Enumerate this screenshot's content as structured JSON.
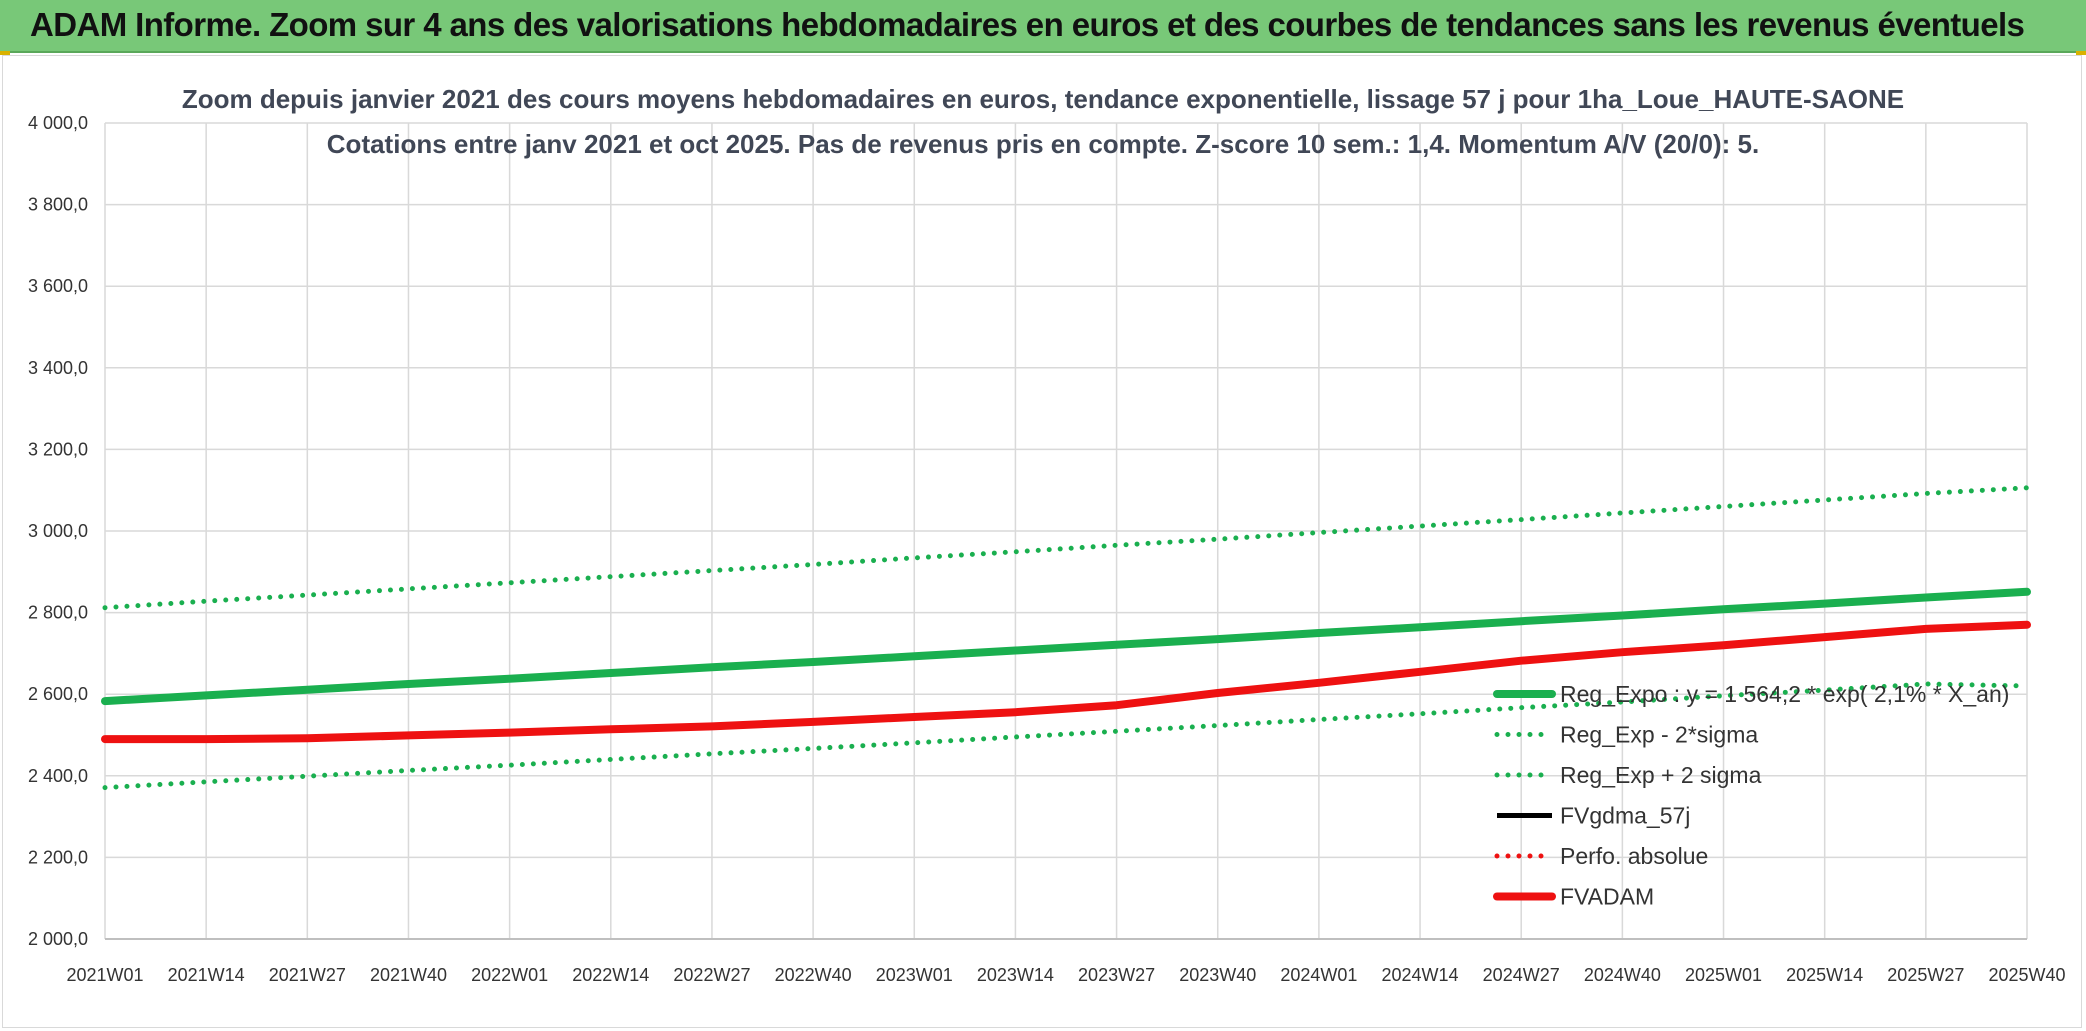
{
  "banner": {
    "title": "ADAM Informe. Zoom sur 4 ans des valorisations hebdomadaires en euros et des courbes de tendances sans les revenus éventuels"
  },
  "colors": {
    "banner_bg": "#78c878",
    "green": "#1aaf4f",
    "red": "#ee1111",
    "black": "#000000",
    "grid": "#d9d9d9",
    "title_text": "#404756"
  },
  "chart_data": {
    "type": "line",
    "title_line1": "Zoom depuis janvier 2021 des cours moyens hebdomadaires en euros, tendance exponentielle, lissage 57 j pour 1ha_Loue_HAUTE-SAONE",
    "title_line2": "Cotations entre janv 2021 et oct 2025. Pas de revenus pris en compte. Z-score 10 sem.: 1,4. Momentum A/V (20/0): 5.",
    "x_categories": [
      "2021W01",
      "2021W14",
      "2021W27",
      "2021W40",
      "2022W01",
      "2022W14",
      "2022W27",
      "2022W40",
      "2023W01",
      "2023W14",
      "2023W27",
      "2023W40",
      "2024W01",
      "2024W14",
      "2024W27",
      "2024W40",
      "2025W01",
      "2025W14",
      "2025W27",
      "2025W40"
    ],
    "y_ticks": [
      "2 000,0",
      "2 200,0",
      "2 400,0",
      "2 600,0",
      "2 800,0",
      "3 000,0",
      "3 200,0",
      "3 400,0",
      "3 600,0",
      "3 800,0",
      "4 000,0"
    ],
    "ylim": [
      2000,
      4000
    ],
    "legend_position": "right",
    "series": [
      {
        "name": "Reg_Expo : y = 1 564,2 * exp( 2,1% * X_an)",
        "style": "solid-thick",
        "color": "#1aaf4f",
        "values": [
          2583,
          2597,
          2611,
          2625,
          2638,
          2652,
          2666,
          2679,
          2693,
          2707,
          2721,
          2735,
          2750,
          2764,
          2779,
          2793,
          2808,
          2822,
          2837,
          2851
        ]
      },
      {
        "name": "Reg_Exp - 2*sigma",
        "style": "dotted",
        "color": "#1aaf4f",
        "values": [
          2371,
          2385,
          2399,
          2413,
          2426,
          2440,
          2454,
          2467,
          2481,
          2495,
          2509,
          2523,
          2538,
          2552,
          2567,
          2581,
          2596,
          2610,
          2625,
          2620
        ]
      },
      {
        "name": "Reg_Exp + 2 sigma",
        "style": "dotted",
        "color": "#1aaf4f",
        "values": [
          2812,
          2828,
          2843,
          2858,
          2873,
          2888,
          2903,
          2918,
          2934,
          2949,
          2965,
          2980,
          2996,
          3012,
          3028,
          3044,
          3060,
          3076,
          3092,
          3106
        ]
      },
      {
        "name": "FVgdma_57j",
        "style": "solid",
        "color": "#000000",
        "values": []
      },
      {
        "name": "Perfo. absolue",
        "style": "dotted",
        "color": "#ee1111",
        "values": []
      },
      {
        "name": "FVADAM",
        "style": "solid-thick",
        "color": "#ee1111",
        "values": [
          2490,
          2490,
          2492,
          2499,
          2506,
          2514,
          2521,
          2532,
          2544,
          2556,
          2573,
          2603,
          2628,
          2655,
          2682,
          2703,
          2720,
          2740,
          2760,
          2770
        ]
      }
    ]
  }
}
